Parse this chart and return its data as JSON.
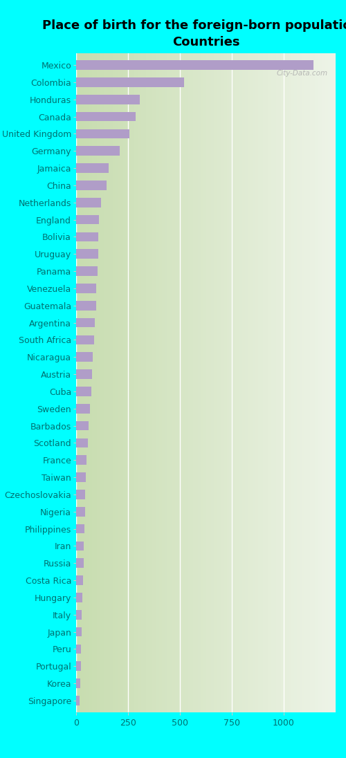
{
  "title": "Place of birth for the foreign-born population -\nCountries",
  "categories": [
    "Mexico",
    "Colombia",
    "Honduras",
    "Canada",
    "United Kingdom",
    "Germany",
    "Jamaica",
    "China",
    "Netherlands",
    "England",
    "Bolivia",
    "Uruguay",
    "Panama",
    "Venezuela",
    "Guatemala",
    "Argentina",
    "South Africa",
    "Nicaragua",
    "Austria",
    "Cuba",
    "Sweden",
    "Barbados",
    "Scotland",
    "France",
    "Taiwan",
    "Czechoslovakia",
    "Nigeria",
    "Philippines",
    "Iran",
    "Russia",
    "Costa Rica",
    "Hungary",
    "Italy",
    "Japan",
    "Peru",
    "Portugal",
    "Korea",
    "Singapore"
  ],
  "values": [
    1142,
    520,
    305,
    285,
    255,
    210,
    155,
    148,
    120,
    110,
    108,
    105,
    102,
    98,
    95,
    90,
    85,
    80,
    78,
    72,
    65,
    60,
    55,
    50,
    47,
    44,
    42,
    40,
    38,
    36,
    33,
    30,
    28,
    26,
    24,
    22,
    20,
    18
  ],
  "bar_color": "#b09dc8",
  "fig_bg_color": "#00ffff",
  "plot_bg_color": "#e6eed8",
  "title_fontsize": 13,
  "tick_fontsize": 9,
  "xlabel_ticks": [
    0,
    250,
    500,
    750,
    1000
  ],
  "xlim": [
    0,
    1250
  ],
  "watermark": "City-Data.com"
}
